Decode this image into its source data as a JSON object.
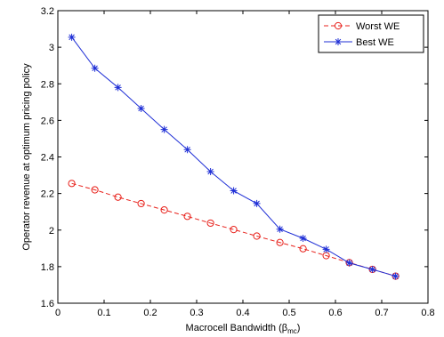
{
  "chart_data": {
    "type": "line",
    "xlabel": "Macrocell Bandwidth (β",
    "xlabel_sub": "mc",
    "xlabel_end": ")",
    "ylabel": "Operator revenue at optimum pricing policy",
    "xlim": [
      0,
      0.8
    ],
    "ylim": [
      1.6,
      3.2
    ],
    "xticks": [
      0,
      0.1,
      0.2,
      0.3,
      0.4,
      0.5,
      0.6,
      0.7,
      0.8
    ],
    "xtick_labels": [
      "0",
      "0.1",
      "0.2",
      "0.3",
      "0.4",
      "0.5",
      "0.6",
      "0.7",
      "0.8"
    ],
    "yticks": [
      1.6,
      1.8,
      2,
      2.2,
      2.4,
      2.6,
      2.8,
      3,
      3.2
    ],
    "ytick_labels": [
      "1.6",
      "1.8",
      "2",
      "2.2",
      "2.4",
      "2.6",
      "2.8",
      "3",
      "3.2"
    ],
    "grid": false,
    "legend_position": "top-right",
    "x": [
      0.03,
      0.08,
      0.13,
      0.18,
      0.23,
      0.28,
      0.33,
      0.38,
      0.43,
      0.48,
      0.53,
      0.58,
      0.63,
      0.68,
      0.73
    ],
    "series": [
      {
        "name": "Worst WE",
        "color": "#e8211b",
        "dash": "dashed",
        "marker": "circle",
        "values": [
          2.255,
          2.22,
          2.18,
          2.145,
          2.11,
          2.075,
          2.038,
          2.003,
          1.967,
          1.932,
          1.898,
          1.86,
          1.822,
          1.785,
          1.748
        ]
      },
      {
        "name": "Best WE",
        "color": "#1f2fd6",
        "dash": "solid",
        "marker": "star",
        "values": [
          3.055,
          2.885,
          2.78,
          2.665,
          2.55,
          2.44,
          2.32,
          2.215,
          2.145,
          2.005,
          1.955,
          1.895,
          1.82,
          1.785,
          1.748
        ]
      }
    ]
  }
}
